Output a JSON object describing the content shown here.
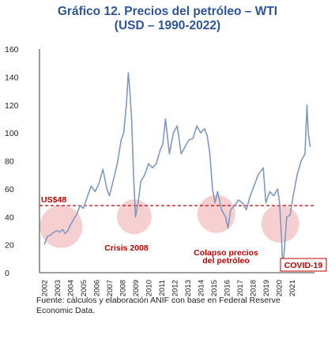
{
  "colors": {
    "title": "#2f5597",
    "series": "#7f99bf",
    "reference_line": "#c00000",
    "highlight": "#f4c7c8",
    "annotation_text": "#c00000"
  },
  "chart_data": {
    "type": "line",
    "title": "Gráfico 12. Precios del petróleo – WTI",
    "subtitle": "(USD – 1990-2022)",
    "xlabel": "",
    "ylabel": "",
    "ylim": [
      0,
      160
    ],
    "yticks": [
      0,
      20,
      40,
      60,
      80,
      100,
      120,
      140,
      160
    ],
    "xlim": [
      2002,
      2022.5
    ],
    "xticks": [
      2002,
      2003,
      2004,
      2005,
      2006,
      2007,
      2008,
      2009,
      2010,
      2011,
      2012,
      2013,
      2014,
      2015,
      2016,
      2017,
      2018,
      2019,
      2020,
      2021
    ],
    "grid": false,
    "legend": "none",
    "reference_line": {
      "value": 48,
      "label": "US$48"
    },
    "annotations": [
      {
        "text": "Crisis 2008"
      },
      {
        "text": "Colapso precios del petróleo"
      },
      {
        "text": "COVID-19"
      }
    ],
    "highlights": [
      {
        "x": 2003.3,
        "y": 33
      },
      {
        "x": 2008.9,
        "y": 40
      },
      {
        "x": 2015.2,
        "y": 42
      },
      {
        "x": 2020.1,
        "y": 35
      }
    ],
    "x": [
      2002.0,
      2002.25,
      2002.5,
      2002.75,
      2003.0,
      2003.2,
      2003.4,
      2003.6,
      2003.8,
      2004.0,
      2004.25,
      2004.5,
      2004.75,
      2005.0,
      2005.3,
      2005.6,
      2005.9,
      2006.2,
      2006.5,
      2006.8,
      2007.0,
      2007.3,
      2007.6,
      2007.9,
      2008.1,
      2008.3,
      2008.45,
      2008.55,
      2008.7,
      2008.85,
      2009.0,
      2009.2,
      2009.4,
      2009.7,
      2010.0,
      2010.3,
      2010.6,
      2010.9,
      2011.1,
      2011.3,
      2011.6,
      2011.9,
      2012.2,
      2012.5,
      2012.8,
      2013.1,
      2013.4,
      2013.7,
      2014.0,
      2014.3,
      2014.5,
      2014.7,
      2014.9,
      2015.1,
      2015.3,
      2015.6,
      2015.9,
      2016.1,
      2016.3,
      2016.6,
      2016.9,
      2017.2,
      2017.5,
      2017.8,
      2018.1,
      2018.4,
      2018.8,
      2019.0,
      2019.3,
      2019.6,
      2019.9,
      2020.05,
      2020.2,
      2020.3,
      2020.45,
      2020.6,
      2020.85,
      2021.1,
      2021.4,
      2021.7,
      2022.0,
      2022.15,
      2022.25,
      2022.4
    ],
    "y": [
      20,
      26,
      27,
      29,
      30,
      29,
      31,
      28,
      30,
      34,
      38,
      42,
      48,
      46,
      54,
      62,
      58,
      64,
      74,
      60,
      55,
      66,
      78,
      95,
      100,
      120,
      143,
      132,
      110,
      70,
      40,
      50,
      65,
      70,
      78,
      75,
      78,
      88,
      92,
      110,
      85,
      100,
      105,
      85,
      90,
      95,
      96,
      105,
      100,
      103,
      98,
      85,
      60,
      50,
      58,
      45,
      40,
      32,
      45,
      48,
      52,
      50,
      45,
      55,
      62,
      70,
      75,
      50,
      58,
      55,
      60,
      50,
      25,
      2,
      20,
      40,
      41,
      55,
      70,
      80,
      85,
      120,
      100,
      90
    ]
  },
  "source_note": "Fuente: cálculos y elaboración ANIF con base en Federal Reserve Economic Data."
}
